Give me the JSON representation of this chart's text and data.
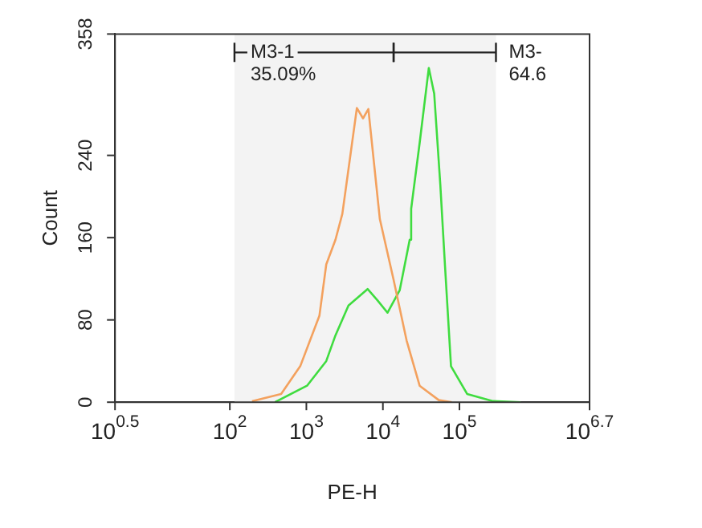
{
  "chart_data": {
    "type": "line",
    "xlabel": "PE-H",
    "ylabel": "Count",
    "log": "x",
    "xlim": [
      3.162,
      5012000
    ],
    "xticks": [
      {
        "value": 3.162,
        "label": "10$^{0.5}$"
      },
      {
        "value": 100,
        "label": "10$^{2}$"
      },
      {
        "value": 1000,
        "label": "10$^{3}$"
      },
      {
        "value": 10000,
        "label": "10$^{4}$"
      },
      {
        "value": 100000,
        "label": "10$^{5}$"
      },
      {
        "value": 5012000,
        "label": "10$^{6.7}$"
      }
    ],
    "ylim": [
      0,
      358
    ],
    "yticks": [
      0,
      80,
      160,
      240,
      358
    ],
    "grid": false,
    "legend": false,
    "marker": "none",
    "line_style": "solid",
    "bands": [
      {
        "axis": "x",
        "from": 115,
        "to": 13800,
        "label": "M3-1\n35.09%",
        "color": "#f3f3f3"
      },
      {
        "axis": "x",
        "from": 13800,
        "to": 300000,
        "label": "M3-\n64.6",
        "color": "#f3f3f3"
      }
    ],
    "series": [
      {
        "color": "#f3a15e",
        "x": [
          195,
          468,
          832,
          1480,
          1820,
          2400,
          2950,
          4570,
          5500,
          6460,
          9120,
          13800,
          20400,
          30200,
          53700,
          79400
        ],
        "values": [
          1,
          8,
          35,
          84,
          134,
          158,
          183,
          286,
          276,
          285,
          178,
          119,
          60,
          16,
          2,
          0
        ]
      },
      {
        "color": "#3fdc3f",
        "x": [
          389,
          1020,
          1820,
          2400,
          3550,
          6310,
          8510,
          11500,
          16600,
          22400,
          23400,
          30200,
          39800,
          46800,
          56200,
          64600,
          77600,
          126000,
          275000,
          631000
        ],
        "values": [
          0,
          16,
          40,
          65,
          94,
          110,
          99,
          87,
          109,
          158,
          188,
          252,
          325,
          300,
          212,
          134,
          35,
          8,
          1,
          0
        ]
      }
    ]
  }
}
